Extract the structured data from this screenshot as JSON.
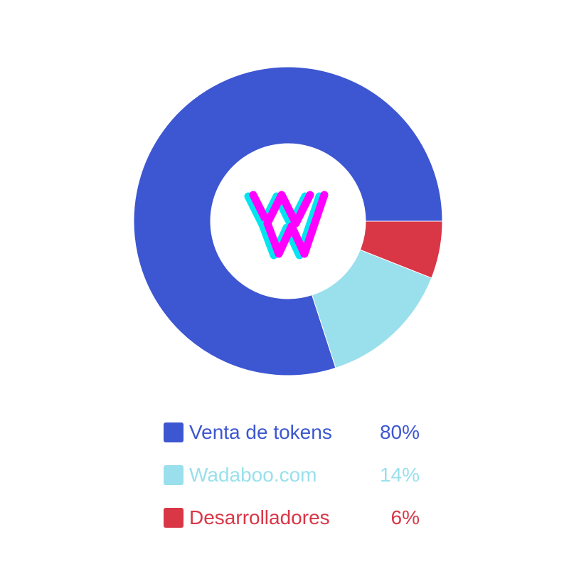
{
  "colors": {
    "venta": "#3d56d1",
    "wadaboo": "#99e0ec",
    "desarrolladores": "#d93646",
    "logo_magenta": "#ff00ff",
    "logo_cyan": "#00e5f0"
  },
  "chart_data": {
    "type": "pie",
    "variant": "donut",
    "title": "",
    "start_angle_deg": 0,
    "direction": "counterclockwise",
    "slices": [
      {
        "label": "Venta de tokens",
        "value": 80,
        "value_label": "80%",
        "color": "#3d56d1"
      },
      {
        "label": "Wadaboo.com",
        "value": 14,
        "value_label": "14%",
        "color": "#99e0ec"
      },
      {
        "label": "Desarrolladores",
        "value": 6,
        "value_label": "6%",
        "color": "#d93646"
      }
    ],
    "legend_position": "bottom",
    "center_logo": "wadaboo-w-logo"
  }
}
